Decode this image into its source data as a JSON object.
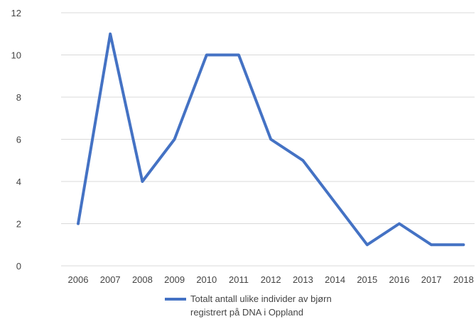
{
  "chart_data": {
    "type": "line",
    "x": [
      "2006",
      "2007",
      "2008",
      "2009",
      "2010",
      "2011",
      "2012",
      "2013",
      "2014",
      "2015",
      "2016",
      "2017",
      "2018"
    ],
    "series": [
      {
        "name": "Totalt antall ulike individer av bjørn registrert på DNA i Oppland",
        "values": [
          2,
          11,
          4,
          6,
          10,
          10,
          6,
          5,
          3,
          1,
          2,
          1,
          1
        ]
      }
    ],
    "ylim": [
      0,
      12
    ],
    "yticks": [
      0,
      2,
      4,
      6,
      8,
      10,
      12
    ],
    "grid": "horizontal",
    "legend": "bottom",
    "colors": {
      "line": "#4472C4",
      "grid": "#d9d9d9",
      "text": "#444444"
    }
  },
  "legend": {
    "line1": "Totalt antall ulike individer av bjørn",
    "line2": "registrert på DNA i Oppland"
  }
}
